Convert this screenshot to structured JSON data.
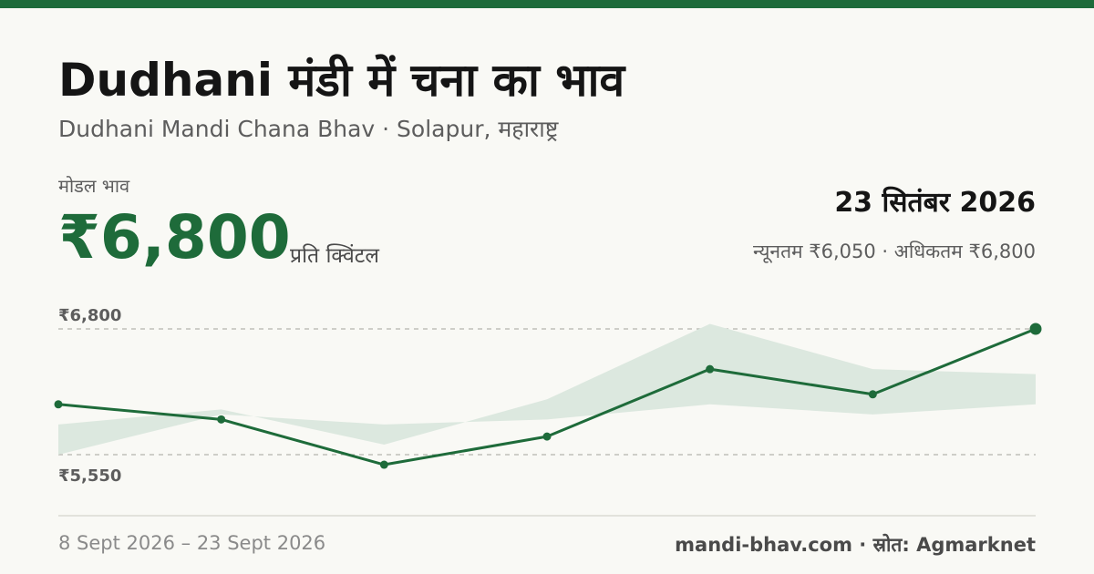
{
  "title": "Dudhani मंडी में चना का भाव",
  "subtitle": "Dudhani Mandi Chana Bhav · Solapur, महाराष्ट्र",
  "modal_label": "मोडल भाव",
  "modal_price": "₹6,800",
  "unit": "प्रति क्विंटल",
  "date": "23 सितंबर 2026",
  "range_text": "न्यूनतम ₹6,050 · अधिकतम ₹6,800",
  "period": "8 Sept 2026 – 23 Sept 2026",
  "source": "mandi-bhav.com · स्रोत: Agmarknet",
  "colors": {
    "accent": "#1e6b3a",
    "band": "#dce8df"
  },
  "chart_data": {
    "type": "line",
    "ylim": [
      5550,
      6800
    ],
    "ytick_labels": [
      "₹6,800",
      "₹5,550"
    ],
    "ytick_values": [
      6800,
      5550
    ],
    "series": [
      {
        "values": [
          5550,
          5950,
          5850,
          5900,
          6050,
          5950,
          6050
        ]
      },
      {
        "values": [
          6050,
          5900,
          5450,
          5730,
          6400,
          6150,
          6800
        ]
      },
      {
        "values": [
          5850,
          6000,
          5650,
          6100,
          6850,
          6400,
          6350
        ]
      }
    ]
  }
}
